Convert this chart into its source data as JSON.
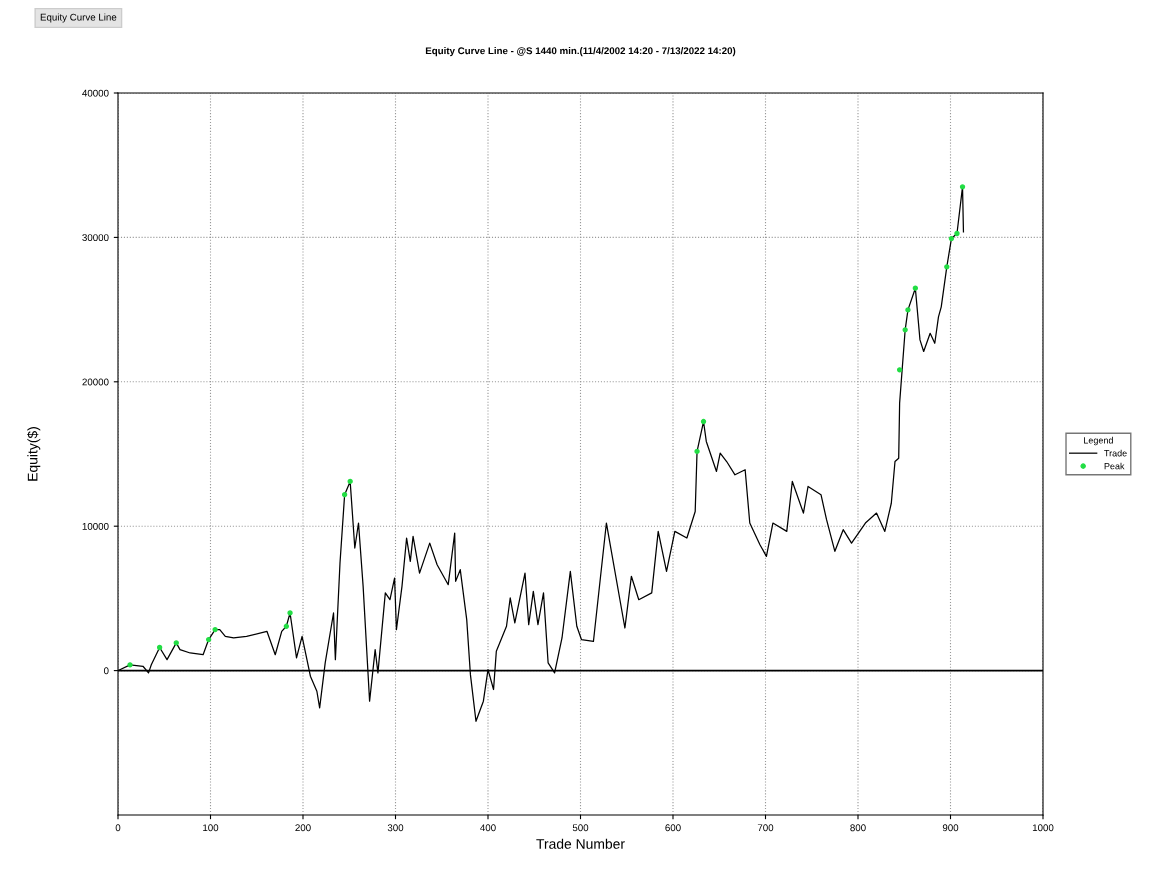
{
  "chart_data": {
    "type": "line",
    "title": "Equity Curve Line - @S 1440 min.(11/4/2002 14:20 - 7/13/2022 14:20)",
    "xlabel": "Trade Number",
    "ylabel": "Equity($)",
    "legend_title": "Legend",
    "annotations": [
      "Equity Curve Line"
    ],
    "series": [
      {
        "name": "Trade",
        "color": "#000000",
        "marker": "none",
        "x": [
          0,
          13,
          27,
          33,
          36,
          45,
          53,
          63,
          67,
          78,
          92,
          98,
          105,
          110,
          116,
          125,
          139,
          161,
          170,
          177,
          182,
          186,
          193,
          199,
          208,
          215,
          218,
          224,
          233,
          235,
          240,
          245,
          251,
          256,
          260,
          265,
          272,
          278,
          281,
          289,
          294,
          299,
          301,
          307,
          312,
          316,
          319,
          326,
          337,
          345,
          357,
          364,
          365,
          370,
          377,
          381,
          387,
          395,
          400,
          406,
          409,
          420,
          424,
          429,
          440,
          444,
          449,
          454,
          460,
          465,
          472,
          480,
          489,
          496,
          501,
          514,
          528,
          548,
          555,
          563,
          577,
          584,
          593,
          602,
          615,
          624,
          626,
          633,
          636,
          647,
          651,
          658,
          667,
          678,
          683,
          694,
          701,
          708,
          723,
          729,
          741,
          746,
          760,
          766,
          775,
          784,
          793,
          808,
          820,
          829,
          836,
          840,
          844,
          845,
          851,
          854,
          862,
          867,
          871,
          878,
          883,
          887,
          890,
          896,
          901,
          907,
          913,
          914
        ],
        "values": [
          0,
          400,
          300,
          -160,
          400,
          1600,
          760,
          1920,
          1450,
          1220,
          1100,
          2150,
          2840,
          2840,
          2370,
          2260,
          2370,
          2720,
          1100,
          2720,
          3070,
          3990,
          880,
          2370,
          -390,
          -1430,
          -2580,
          530,
          3990,
          760,
          7450,
          12180,
          13100,
          8490,
          10220,
          5830,
          -2120,
          1450,
          -160,
          5380,
          4910,
          6410,
          2840,
          5830,
          9180,
          7560,
          9300,
          6750,
          8830,
          7330,
          5950,
          9520,
          6180,
          6990,
          3530,
          -280,
          -3510,
          -2120,
          70,
          -1310,
          1340,
          3070,
          5030,
          3300,
          6750,
          3180,
          5490,
          3180,
          5380,
          530,
          -160,
          2260,
          6870,
          3070,
          2150,
          2030,
          10220,
          2950,
          6530,
          4910,
          5380,
          9640,
          6870,
          9640,
          9180,
          11020,
          15180,
          17250,
          15870,
          13790,
          15060,
          14480,
          13560,
          13910,
          10220,
          8720,
          7910,
          10220,
          9640,
          13100,
          10910,
          12750,
          12180,
          10450,
          8260,
          9760,
          8830,
          10220,
          10910,
          9640,
          11590,
          14480,
          14710,
          18520,
          23600,
          24980,
          26480,
          22900,
          22100,
          23360,
          22670,
          24500,
          25190,
          27960,
          29920,
          30270,
          33500,
          30380
        ]
      },
      {
        "name": "Peak",
        "type": "scatter",
        "color": "#22dd44",
        "marker": "circle",
        "x": [
          13,
          45,
          63,
          98,
          105,
          182,
          186,
          245,
          251,
          626,
          633,
          845,
          851,
          854,
          862,
          896,
          901,
          907,
          913
        ],
        "values": [
          400,
          1600,
          1920,
          2150,
          2840,
          3070,
          3990,
          12180,
          13100,
          15180,
          17250,
          20830,
          23600,
          24980,
          26480,
          27960,
          29920,
          30270,
          33500
        ]
      }
    ],
    "xlim": [
      0,
      1000
    ],
    "xticks": [
      0,
      100,
      200,
      300,
      400,
      500,
      600,
      700,
      800,
      900,
      1000
    ],
    "ylim": [
      -10000,
      40000
    ],
    "yticks": [
      0,
      10000,
      20000,
      30000,
      40000
    ],
    "ref_lines": [
      {
        "axis": "y",
        "value": 0,
        "color": "#000000"
      }
    ],
    "grid": true,
    "legend": "right",
    "line_style": "solid"
  }
}
